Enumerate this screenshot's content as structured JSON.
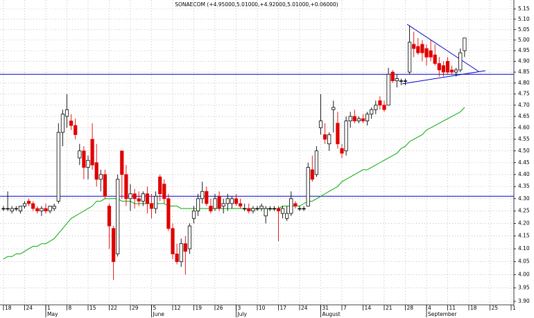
{
  "chart_data": {
    "type": "candlestick",
    "title": "SONAECOM (+4.95000,5.01000,+4.92000,5.01000,+0.06000)",
    "log_scale": true,
    "grid": true,
    "ylim": [
      3.9,
      5.15
    ],
    "yticks": [
      {
        "value": 3.9,
        "label": "3.90"
      },
      3.95,
      {
        "value": 4.0,
        "label": "4.00"
      },
      4.05,
      {
        "value": 4.1,
        "label": "4.10"
      },
      4.15,
      {
        "value": 4.2,
        "label": "4.20"
      },
      4.25,
      {
        "value": 4.3,
        "label": "4.30"
      },
      4.35,
      {
        "value": 4.4,
        "label": "4.40"
      },
      4.45,
      {
        "value": 4.5,
        "label": "4.50"
      },
      4.55,
      {
        "value": 4.6,
        "label": "4.60"
      },
      4.65,
      {
        "value": 4.7,
        "label": "4.70"
      },
      4.75,
      {
        "value": 4.8,
        "label": "4.80"
      },
      4.85,
      {
        "value": 4.9,
        "label": "4.90"
      },
      4.95,
      {
        "value": 5.0,
        "label": "5.00"
      },
      5.05,
      {
        "value": 5.1,
        "label": "5.10"
      },
      5.15
    ],
    "categories": [
      "18",
      null,
      null,
      null,
      null,
      "24",
      null,
      null,
      null,
      null,
      "1",
      null,
      null,
      null,
      null,
      "8",
      null,
      null,
      null,
      null,
      "15",
      null,
      null,
      null,
      null,
      "22",
      null,
      null,
      null,
      null,
      "29",
      null,
      null,
      null,
      null,
      "5",
      null,
      null,
      null,
      null,
      "12",
      null,
      null,
      null,
      null,
      "19",
      null,
      null,
      null,
      null,
      "26",
      null,
      null,
      null,
      null,
      "3",
      null,
      null,
      null,
      null,
      "10",
      null,
      null,
      null,
      null,
      "17",
      null,
      null,
      null,
      null,
      "24",
      null,
      null,
      null,
      null,
      "31",
      null,
      null,
      null,
      null,
      "7",
      null,
      null,
      null,
      null,
      "14",
      null,
      null,
      null,
      null,
      "21",
      null,
      null,
      null,
      null,
      "28",
      null,
      null,
      null,
      null,
      "4",
      null,
      null,
      null,
      null,
      "11",
      null,
      null,
      null,
      null,
      "18",
      null,
      null,
      null,
      null,
      "25",
      null,
      null,
      null,
      null,
      "1"
    ],
    "months": [
      null,
      null,
      null,
      null,
      null,
      null,
      null,
      null,
      null,
      null,
      "May",
      null,
      null,
      null,
      null,
      null,
      null,
      null,
      null,
      null,
      null,
      null,
      null,
      null,
      null,
      null,
      null,
      null,
      null,
      null,
      null,
      null,
      null,
      null,
      null,
      "June",
      null,
      null,
      null,
      null,
      null,
      null,
      null,
      null,
      null,
      null,
      null,
      null,
      null,
      null,
      null,
      null,
      null,
      null,
      null,
      "July",
      null,
      null,
      null,
      null,
      null,
      null,
      null,
      null,
      null,
      null,
      null,
      null,
      null,
      null,
      null,
      null,
      null,
      null,
      null,
      "August",
      null,
      null,
      null,
      null,
      null,
      null,
      null,
      null,
      null,
      null,
      null,
      null,
      null,
      null,
      null,
      null,
      null,
      null,
      null,
      null,
      null,
      null,
      null,
      null,
      "September",
      null,
      null,
      null,
      null,
      null,
      null,
      null,
      null,
      null,
      null,
      null,
      null,
      null,
      null,
      null,
      null,
      null,
      null,
      null,
      null
    ],
    "up_color": "#ffffff",
    "down_color": "#e00000",
    "ohlc": [
      [
        4.26,
        4.27,
        4.25,
        4.26
      ],
      [
        4.26,
        4.33,
        4.25,
        4.26
      ],
      [
        4.25,
        4.27,
        4.24,
        4.26
      ],
      [
        4.26,
        4.27,
        4.25,
        4.26
      ],
      [
        4.25,
        4.27,
        4.24,
        4.27
      ],
      [
        4.27,
        4.29,
        4.26,
        4.28
      ],
      [
        4.29,
        4.3,
        4.27,
        4.28
      ],
      [
        4.28,
        4.29,
        4.25,
        4.26
      ],
      [
        4.26,
        4.27,
        4.24,
        4.25
      ],
      [
        4.25,
        4.27,
        4.23,
        4.26
      ],
      [
        4.26,
        4.28,
        4.24,
        4.25
      ],
      [
        4.25,
        4.27,
        4.24,
        4.27
      ],
      [
        4.26,
        4.28,
        4.25,
        4.27
      ],
      [
        4.29,
        4.62,
        4.28,
        4.58
      ],
      [
        4.58,
        4.68,
        4.52,
        4.66
      ],
      [
        4.65,
        4.75,
        4.6,
        4.68
      ],
      [
        4.63,
        4.66,
        4.59,
        4.61
      ],
      [
        4.61,
        4.64,
        4.55,
        4.57
      ],
      [
        4.47,
        4.53,
        4.44,
        4.5
      ],
      [
        4.5,
        4.52,
        4.38,
        4.43
      ],
      [
        4.43,
        4.48,
        4.38,
        4.46
      ],
      [
        4.55,
        4.62,
        4.42,
        4.44
      ],
      [
        4.45,
        4.53,
        4.35,
        4.38
      ],
      [
        4.38,
        4.42,
        4.33,
        4.4
      ],
      [
        4.4,
        4.42,
        4.3,
        4.31
      ],
      [
        4.27,
        4.28,
        4.1,
        4.19
      ],
      [
        4.18,
        4.19,
        3.98,
        4.05
      ],
      [
        4.08,
        4.4,
        4.07,
        4.38
      ],
      [
        4.5,
        4.5,
        4.3,
        4.4
      ],
      [
        4.4,
        4.44,
        4.27,
        4.3
      ],
      [
        4.3,
        4.36,
        4.25,
        4.32
      ],
      [
        4.32,
        4.34,
        4.26,
        4.3
      ],
      [
        4.3,
        4.33,
        4.27,
        4.29
      ],
      [
        4.29,
        4.33,
        4.27,
        4.32
      ],
      [
        4.32,
        4.35,
        4.24,
        4.28
      ],
      [
        4.28,
        4.32,
        4.22,
        4.26
      ],
      [
        4.26,
        4.33,
        4.24,
        4.31
      ],
      [
        4.39,
        4.4,
        4.29,
        4.32
      ],
      [
        4.36,
        4.38,
        4.28,
        4.3
      ],
      [
        4.3,
        4.32,
        4.17,
        4.18
      ],
      [
        4.18,
        4.2,
        4.06,
        4.08
      ],
      [
        4.08,
        4.12,
        4.04,
        4.05
      ],
      [
        4.05,
        4.14,
        4.03,
        4.12
      ],
      [
        4.12,
        4.15,
        4.0,
        4.09
      ],
      [
        4.1,
        4.2,
        4.08,
        4.19
      ],
      [
        4.22,
        4.27,
        4.2,
        4.25
      ],
      [
        4.25,
        4.32,
        4.23,
        4.3
      ],
      [
        4.3,
        4.37,
        4.28,
        4.33
      ],
      [
        4.33,
        4.35,
        4.27,
        4.28
      ],
      [
        4.27,
        4.3,
        4.24,
        4.25
      ],
      [
        4.26,
        4.32,
        4.25,
        4.3
      ],
      [
        4.31,
        4.33,
        4.25,
        4.26
      ],
      [
        4.27,
        4.3,
        4.24,
        4.28
      ],
      [
        4.28,
        4.32,
        4.25,
        4.3
      ],
      [
        4.28,
        4.31,
        4.26,
        4.3
      ],
      [
        4.3,
        4.32,
        4.27,
        4.28
      ],
      [
        4.28,
        4.3,
        4.26,
        4.27
      ],
      [
        4.26,
        4.28,
        4.25,
        4.26
      ],
      [
        4.26,
        4.28,
        4.24,
        4.25
      ],
      [
        4.25,
        4.27,
        4.24,
        4.26
      ],
      [
        4.26,
        4.27,
        4.25,
        4.26
      ],
      [
        4.26,
        4.28,
        4.25,
        4.27
      ],
      [
        4.23,
        4.27,
        4.2,
        4.26
      ],
      [
        4.26,
        4.27,
        4.25,
        4.26
      ],
      [
        4.26,
        4.27,
        4.25,
        4.26
      ],
      [
        4.26,
        4.27,
        4.13,
        4.25
      ],
      [
        4.24,
        4.27,
        4.22,
        4.26
      ],
      [
        4.22,
        4.27,
        4.21,
        4.24
      ],
      [
        4.24,
        4.33,
        4.23,
        4.3
      ],
      [
        4.28,
        4.29,
        4.26,
        4.27
      ],
      [
        4.26,
        4.27,
        4.25,
        4.26
      ],
      [
        4.26,
        4.27,
        4.25,
        4.26
      ],
      [
        4.27,
        4.45,
        4.27,
        4.43
      ],
      [
        4.42,
        4.48,
        4.37,
        4.38
      ],
      [
        4.4,
        4.52,
        4.39,
        4.5
      ],
      [
        4.6,
        4.75,
        4.57,
        4.63
      ],
      [
        4.57,
        4.62,
        4.53,
        4.55
      ],
      [
        4.53,
        4.58,
        4.5,
        4.57
      ],
      [
        4.68,
        4.72,
        4.58,
        4.69
      ],
      [
        4.62,
        4.67,
        4.51,
        4.53
      ],
      [
        4.51,
        4.53,
        4.47,
        4.49
      ],
      [
        4.5,
        4.65,
        4.48,
        4.63
      ],
      [
        4.63,
        4.67,
        4.6,
        4.65
      ],
      [
        4.65,
        4.68,
        4.62,
        4.63
      ],
      [
        4.63,
        4.65,
        4.62,
        4.64
      ],
      [
        4.64,
        4.66,
        4.62,
        4.63
      ],
      [
        4.63,
        4.67,
        4.61,
        4.66
      ],
      [
        4.66,
        4.69,
        4.64,
        4.68
      ],
      [
        4.68,
        4.72,
        4.66,
        4.7
      ],
      [
        4.72,
        4.74,
        4.68,
        4.7
      ],
      [
        4.7,
        4.72,
        4.67,
        4.68
      ],
      [
        4.7,
        4.87,
        4.7,
        4.84
      ],
      [
        4.85,
        4.86,
        4.8,
        4.81
      ],
      [
        4.81,
        4.84,
        4.78,
        4.82
      ],
      [
        4.81,
        4.82,
        4.79,
        4.81
      ],
      [
        4.81,
        4.82,
        4.79,
        4.81
      ],
      [
        4.85,
        5.07,
        4.84,
        4.99
      ],
      [
        4.98,
        5.04,
        4.92,
        4.96
      ],
      [
        4.97,
        5.01,
        4.93,
        4.94
      ],
      [
        4.98,
        5.0,
        4.9,
        4.94
      ],
      [
        4.96,
        4.98,
        4.88,
        4.92
      ],
      [
        4.95,
        5.0,
        4.9,
        4.92
      ],
      [
        4.93,
        4.98,
        4.88,
        4.89
      ],
      [
        4.89,
        4.92,
        4.83,
        4.86
      ],
      [
        4.88,
        4.9,
        4.83,
        4.85
      ],
      [
        4.9,
        4.92,
        4.84,
        4.85
      ],
      [
        4.86,
        4.88,
        4.84,
        4.85
      ],
      [
        4.85,
        4.87,
        4.83,
        4.86
      ],
      [
        4.86,
        4.96,
        4.85,
        4.94
      ],
      [
        4.95,
        5.01,
        4.92,
        5.01
      ],
      null,
      null,
      null,
      null,
      null,
      null,
      null,
      null,
      null,
      null,
      null
    ],
    "moving_average": {
      "color": "#00aa00",
      "values": [
        4.06,
        4.07,
        4.07,
        4.08,
        4.08,
        4.09,
        4.1,
        4.11,
        4.11,
        4.12,
        4.12,
        4.13,
        4.14,
        4.16,
        4.18,
        4.2,
        4.22,
        4.23,
        4.24,
        4.25,
        4.26,
        4.27,
        4.29,
        4.29,
        4.3,
        4.3,
        4.3,
        4.3,
        4.29,
        4.29,
        4.29,
        4.28,
        4.28,
        4.28,
        4.28,
        4.28,
        4.28,
        4.28,
        4.28,
        4.27,
        4.27,
        4.27,
        4.26,
        4.26,
        4.26,
        4.26,
        4.26,
        4.26,
        4.26,
        4.26,
        4.26,
        4.26,
        4.26,
        4.26,
        4.26,
        4.26,
        4.26,
        4.26,
        4.26,
        4.26,
        4.26,
        4.26,
        4.26,
        4.26,
        4.26,
        4.26,
        4.27,
        4.27,
        4.27,
        4.27,
        4.27,
        4.28,
        4.29,
        4.29,
        4.3,
        4.31,
        4.32,
        4.33,
        4.34,
        4.35,
        4.37,
        4.38,
        4.39,
        4.4,
        4.41,
        4.42,
        4.42,
        4.43,
        4.44,
        4.45,
        4.46,
        4.47,
        4.48,
        4.49,
        4.51,
        4.52,
        4.54,
        4.55,
        4.56,
        4.57,
        4.59,
        4.6,
        4.61,
        4.62,
        4.63,
        4.64,
        4.65,
        4.66,
        4.67,
        4.69,
        null,
        null,
        null,
        null,
        null,
        null,
        null,
        null,
        null,
        null,
        null
      ]
    },
    "hlines": {
      "color": "#0000cc",
      "values": [
        4.84,
        4.31
      ]
    }
  }
}
